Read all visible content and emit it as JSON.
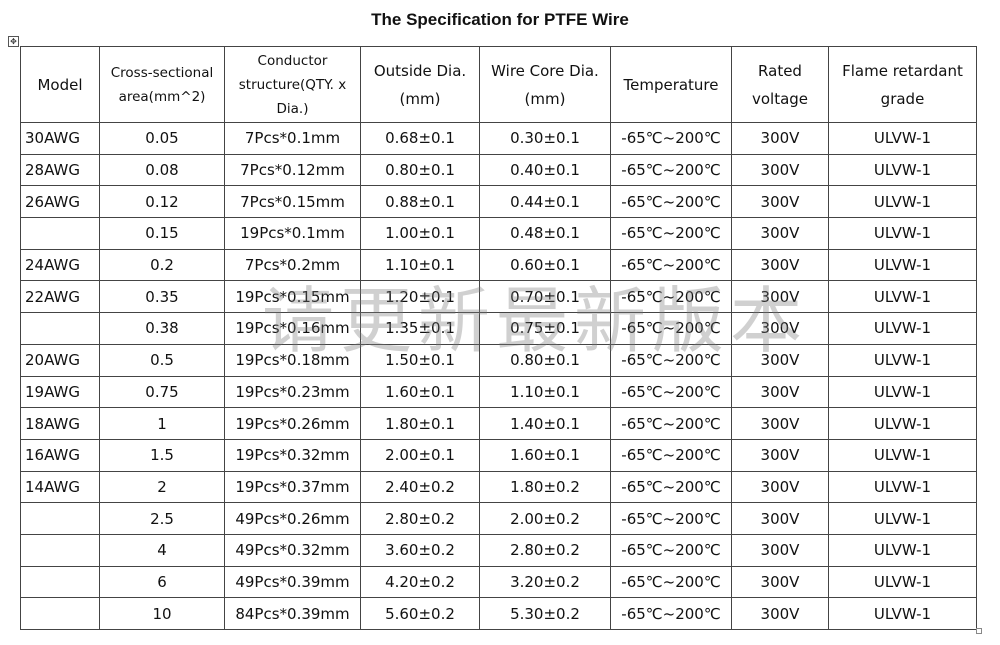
{
  "title": "The Specification for PTFE Wire",
  "headers": {
    "model": "Model",
    "area": "Cross-sectional area(mm^2)",
    "conductor": "Conductor structure(QTY. x Dia.)",
    "outside": "Outside Dia.(mm)",
    "core": "Wire Core Dia.(mm)",
    "temperature": "Temperature",
    "voltage": "Rated voltage",
    "flame": "Flame retardant grade"
  },
  "rows": [
    {
      "model": "30AWG",
      "area": "0.05",
      "conductor": "7Pcs*0.1mm",
      "outside": "0.68±0.1",
      "core": "0.30±0.1",
      "temperature": "-65℃~200℃",
      "voltage": "300V",
      "flame": "ULVW-1"
    },
    {
      "model": "28AWG",
      "area": "0.08",
      "conductor": "7Pcs*0.12mm",
      "outside": "0.80±0.1",
      "core": "0.40±0.1",
      "temperature": "-65℃~200℃",
      "voltage": "300V",
      "flame": "ULVW-1"
    },
    {
      "model": "26AWG",
      "area": "0.12",
      "conductor": "7Pcs*0.15mm",
      "outside": "0.88±0.1",
      "core": "0.44±0.1",
      "temperature": "-65℃~200℃",
      "voltage": "300V",
      "flame": "ULVW-1"
    },
    {
      "model": "",
      "area": "0.15",
      "conductor": "19Pcs*0.1mm",
      "outside": "1.00±0.1",
      "core": "0.48±0.1",
      "temperature": "-65℃~200℃",
      "voltage": "300V",
      "flame": "ULVW-1"
    },
    {
      "model": "24AWG",
      "area": "0.2",
      "conductor": "7Pcs*0.2mm",
      "outside": "1.10±0.1",
      "core": "0.60±0.1",
      "temperature": "-65℃~200℃",
      "voltage": "300V",
      "flame": "ULVW-1"
    },
    {
      "model": "22AWG",
      "area": "0.35",
      "conductor": "19Pcs*0.15mm",
      "outside": "1.20±0.1",
      "core": "0.70±0.1",
      "temperature": "-65℃~200℃",
      "voltage": "300V",
      "flame": "ULVW-1"
    },
    {
      "model": "",
      "area": "0.38",
      "conductor": "19Pcs*0.16mm",
      "outside": "1.35±0.1",
      "core": "0.75±0.1",
      "temperature": "-65℃~200℃",
      "voltage": "300V",
      "flame": "ULVW-1"
    },
    {
      "model": "20AWG",
      "area": "0.5",
      "conductor": "19Pcs*0.18mm",
      "outside": "1.50±0.1",
      "core": "0.80±0.1",
      "temperature": "-65℃~200℃",
      "voltage": "300V",
      "flame": "ULVW-1"
    },
    {
      "model": "19AWG",
      "area": "0.75",
      "conductor": "19Pcs*0.23mm",
      "outside": "1.60±0.1",
      "core": "1.10±0.1",
      "temperature": "-65℃~200℃",
      "voltage": "300V",
      "flame": "ULVW-1"
    },
    {
      "model": "18AWG",
      "area": "1",
      "conductor": "19Pcs*0.26mm",
      "outside": "1.80±0.1",
      "core": "1.40±0.1",
      "temperature": "-65℃~200℃",
      "voltage": "300V",
      "flame": "ULVW-1"
    },
    {
      "model": "16AWG",
      "area": "1.5",
      "conductor": "19Pcs*0.32mm",
      "outside": "2.00±0.1",
      "core": "1.60±0.1",
      "temperature": "-65℃~200℃",
      "voltage": "300V",
      "flame": "ULVW-1"
    },
    {
      "model": "14AWG",
      "area": "2",
      "conductor": "19Pcs*0.37mm",
      "outside": "2.40±0.2",
      "core": "1.80±0.2",
      "temperature": "-65℃~200℃",
      "voltage": "300V",
      "flame": "ULVW-1"
    },
    {
      "model": "",
      "area": "2.5",
      "conductor": "49Pcs*0.26mm",
      "outside": "2.80±0.2",
      "core": "2.00±0.2",
      "temperature": "-65℃~200℃",
      "voltage": "300V",
      "flame": "ULVW-1"
    },
    {
      "model": "",
      "area": "4",
      "conductor": "49Pcs*0.32mm",
      "outside": "3.60±0.2",
      "core": "2.80±0.2",
      "temperature": "-65℃~200℃",
      "voltage": "300V",
      "flame": "ULVW-1"
    },
    {
      "model": "",
      "area": "6",
      "conductor": "49Pcs*0.39mm",
      "outside": "4.20±0.2",
      "core": "3.20±0.2",
      "temperature": "-65℃~200℃",
      "voltage": "300V",
      "flame": "ULVW-1"
    },
    {
      "model": "",
      "area": "10",
      "conductor": "84Pcs*0.39mm",
      "outside": "5.60±0.2",
      "core": "5.30±0.2",
      "temperature": "-65℃~200℃",
      "voltage": "300V",
      "flame": "ULVW-1"
    }
  ],
  "watermark": "请更新最新版本"
}
